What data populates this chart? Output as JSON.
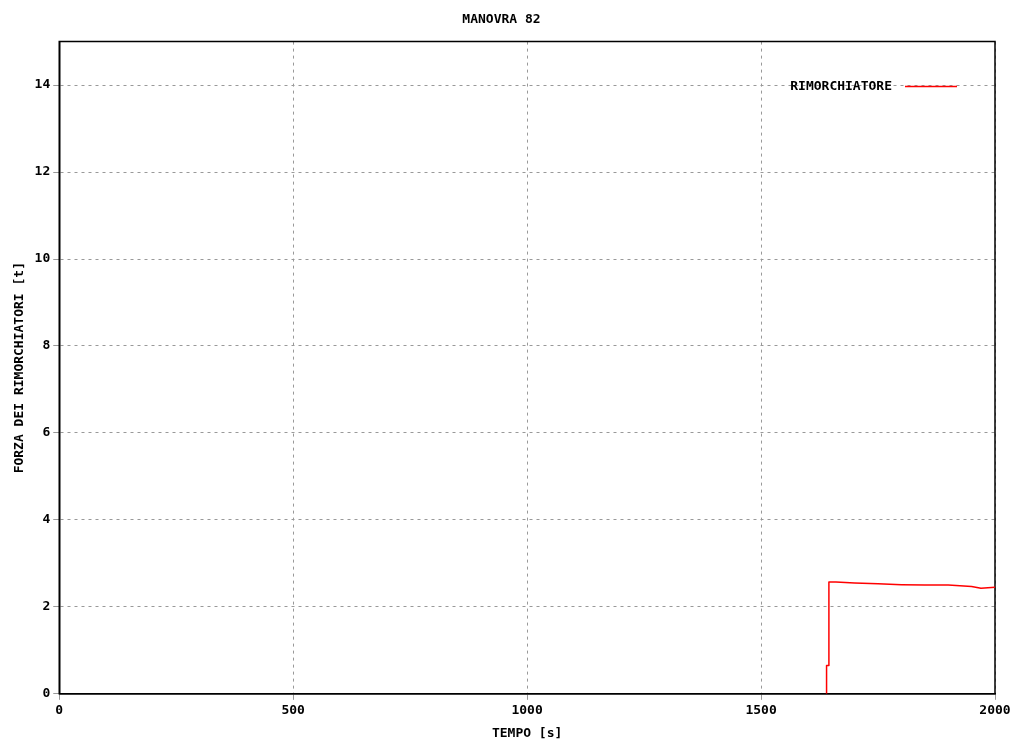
{
  "chart_data": {
    "type": "line",
    "title": "MANOVRA 82",
    "xlabel": "TEMPO [s]",
    "ylabel": "FORZA DEI RIMORCHIATORI [t]",
    "series": [
      {
        "name": "RIMORCHIATORE",
        "color": "#ff0000",
        "x": [
          1640,
          1640,
          1645,
          1645,
          1660,
          1700,
          1750,
          1800,
          1850,
          1900,
          1950,
          1970,
          2000
        ],
        "values": [
          0,
          0.65,
          0.65,
          2.57,
          2.57,
          2.55,
          2.53,
          2.51,
          2.5,
          2.5,
          2.47,
          2.43,
          2.45
        ]
      }
    ],
    "xlim": [
      0,
      2000
    ],
    "xticks": [
      0,
      500,
      1000,
      1500,
      2000
    ],
    "ylim": [
      0,
      15
    ],
    "yticks": [
      0,
      2,
      4,
      6,
      8,
      10,
      12,
      14
    ],
    "grid": true,
    "legend": "top right",
    "marker": "none",
    "line_style": "solid"
  }
}
